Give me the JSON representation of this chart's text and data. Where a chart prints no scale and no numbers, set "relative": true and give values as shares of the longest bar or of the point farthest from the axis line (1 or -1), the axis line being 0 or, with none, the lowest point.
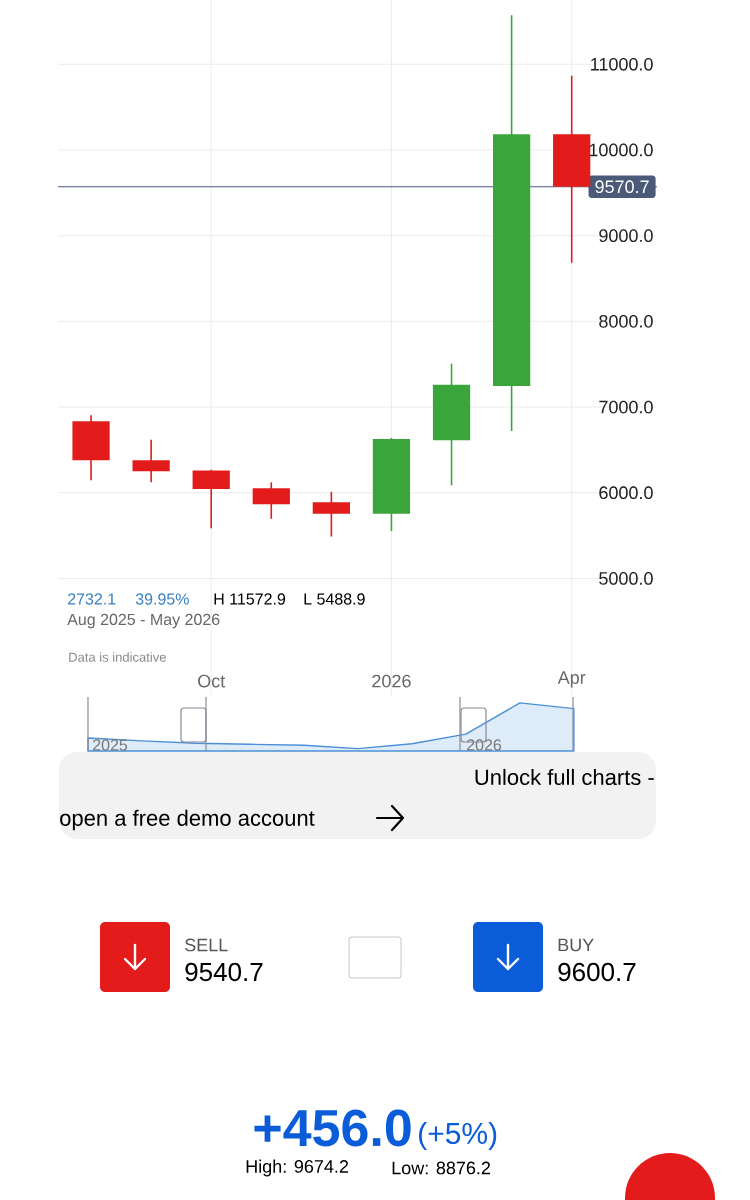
{
  "chart_data": [
    {
      "type": "candlestick",
      "categories": [
        null,
        null,
        "Oct",
        null,
        null,
        "2026",
        null,
        null,
        "Apr"
      ],
      "ohlc": [
        [
          6835,
          6905,
          6146,
          6380
        ],
        [
          6379,
          6618,
          6122,
          6250
        ],
        [
          6259,
          6267,
          5585,
          6043
        ],
        [
          6052,
          6122,
          5696,
          5865
        ],
        [
          5889,
          6011,
          5488.9,
          5754
        ],
        [
          5754,
          6640,
          5552,
          6627
        ],
        [
          6613,
          7506,
          6087,
          7260
        ],
        [
          7246,
          11572.9,
          6720,
          10184
        ],
        [
          10184,
          10867,
          8684,
          9570.7
        ]
      ],
      "colors": [
        "#e31b1b",
        "#e31b1b",
        "#e31b1b",
        "#e31b1b",
        "#e31b1b",
        "#3aa53a",
        "#3aa53a",
        "#3aa53a",
        "#e31b1b"
      ],
      "ylim": [
        3640,
        11750
      ],
      "yticks": [
        {
          "value": 5000,
          "label": "5000.0"
        },
        {
          "value": 6000,
          "label": "6000.0"
        },
        {
          "value": 7000,
          "label": "7000.0"
        },
        {
          "value": 8000,
          "label": "8000.0"
        },
        {
          "value": 9000,
          "label": "9000.0"
        },
        {
          "value": 10000,
          "label": "10000.0"
        },
        {
          "value": 11000,
          "label": "11000.0"
        }
      ],
      "grid": true,
      "ref_lines": [
        {
          "axis": "y",
          "value": 9570.7,
          "label": "9570.7",
          "color": "#4a5a78"
        }
      ],
      "annotations": [
        "2732.1",
        "39.95%",
        "H 11572.9",
        "L 5488.9",
        "Aug 2025 - May 2026",
        "Data is indicative",
        "Unlock full charts -",
        "open a free demo account"
      ]
    },
    {
      "type": "area",
      "relative": true,
      "categories": [
        null,
        null,
        null,
        null,
        null,
        null,
        null,
        null,
        null,
        null
      ],
      "values": [
        0.27,
        0.21,
        0.16,
        0.14,
        0.12,
        0.05,
        0.15,
        0.35,
        1,
        0.88
      ],
      "color": "#deebf8",
      "annotations": [
        "2025",
        "2026"
      ]
    },
    {
      "type": "other",
      "annotations": [
        "SELL",
        "9540.7",
        "BUY",
        "9600.7",
        "+456.0",
        "(+5%)",
        "High: 9674.2",
        "Low: 8876.2"
      ]
    }
  ]
}
